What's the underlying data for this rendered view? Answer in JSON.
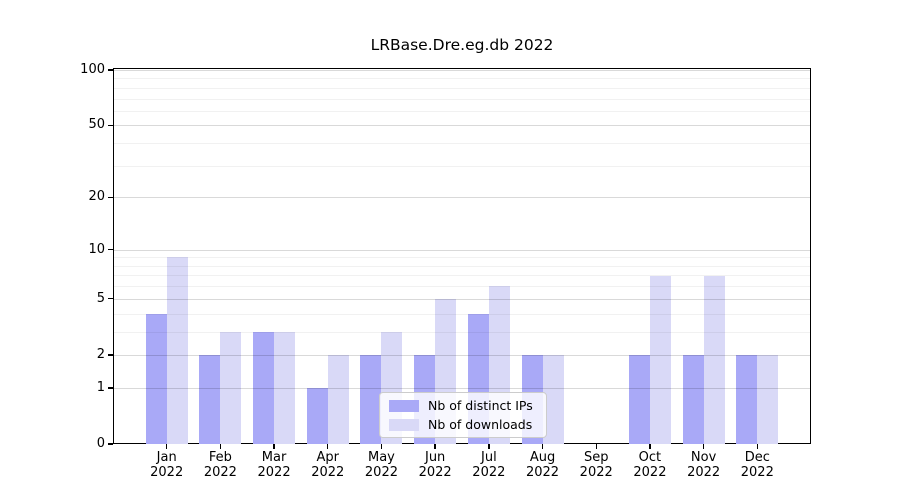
{
  "title": "LRBase.Dre.eg.db 2022",
  "legend": {
    "items": [
      {
        "label": "Nb of distinct IPs",
        "color": "#a9a9f7"
      },
      {
        "label": "Nb of downloads",
        "color": "#d9d9f7"
      }
    ]
  },
  "chart_data": {
    "type": "bar",
    "title": "LRBase.Dre.eg.db 2022",
    "categories": [
      "Jan",
      "Feb",
      "Mar",
      "Apr",
      "May",
      "Jun",
      "Jul",
      "Aug",
      "Sep",
      "Oct",
      "Nov",
      "Dec"
    ],
    "category_year": "2022",
    "series": [
      {
        "name": "Nb of distinct IPs",
        "color": "#a9a9f7",
        "values": [
          4,
          2,
          3,
          1,
          2,
          2,
          4,
          2,
          0,
          2,
          2,
          2
        ]
      },
      {
        "name": "Nb of downloads",
        "color": "#d9d9f7",
        "values": [
          9,
          3,
          3,
          2,
          3,
          5,
          6,
          2,
          0,
          7,
          7,
          2
        ]
      }
    ],
    "xlabel": "",
    "ylabel": "",
    "yscale": "log1p",
    "ylim": [
      0,
      100
    ],
    "y_ticks": [
      0,
      1,
      2,
      5,
      10,
      20,
      50,
      100
    ],
    "y_minor_gridlines": [
      3,
      4,
      6,
      7,
      8,
      9,
      30,
      40,
      60,
      70,
      80,
      90
    ],
    "grid": true,
    "legend_position": "lower center"
  }
}
